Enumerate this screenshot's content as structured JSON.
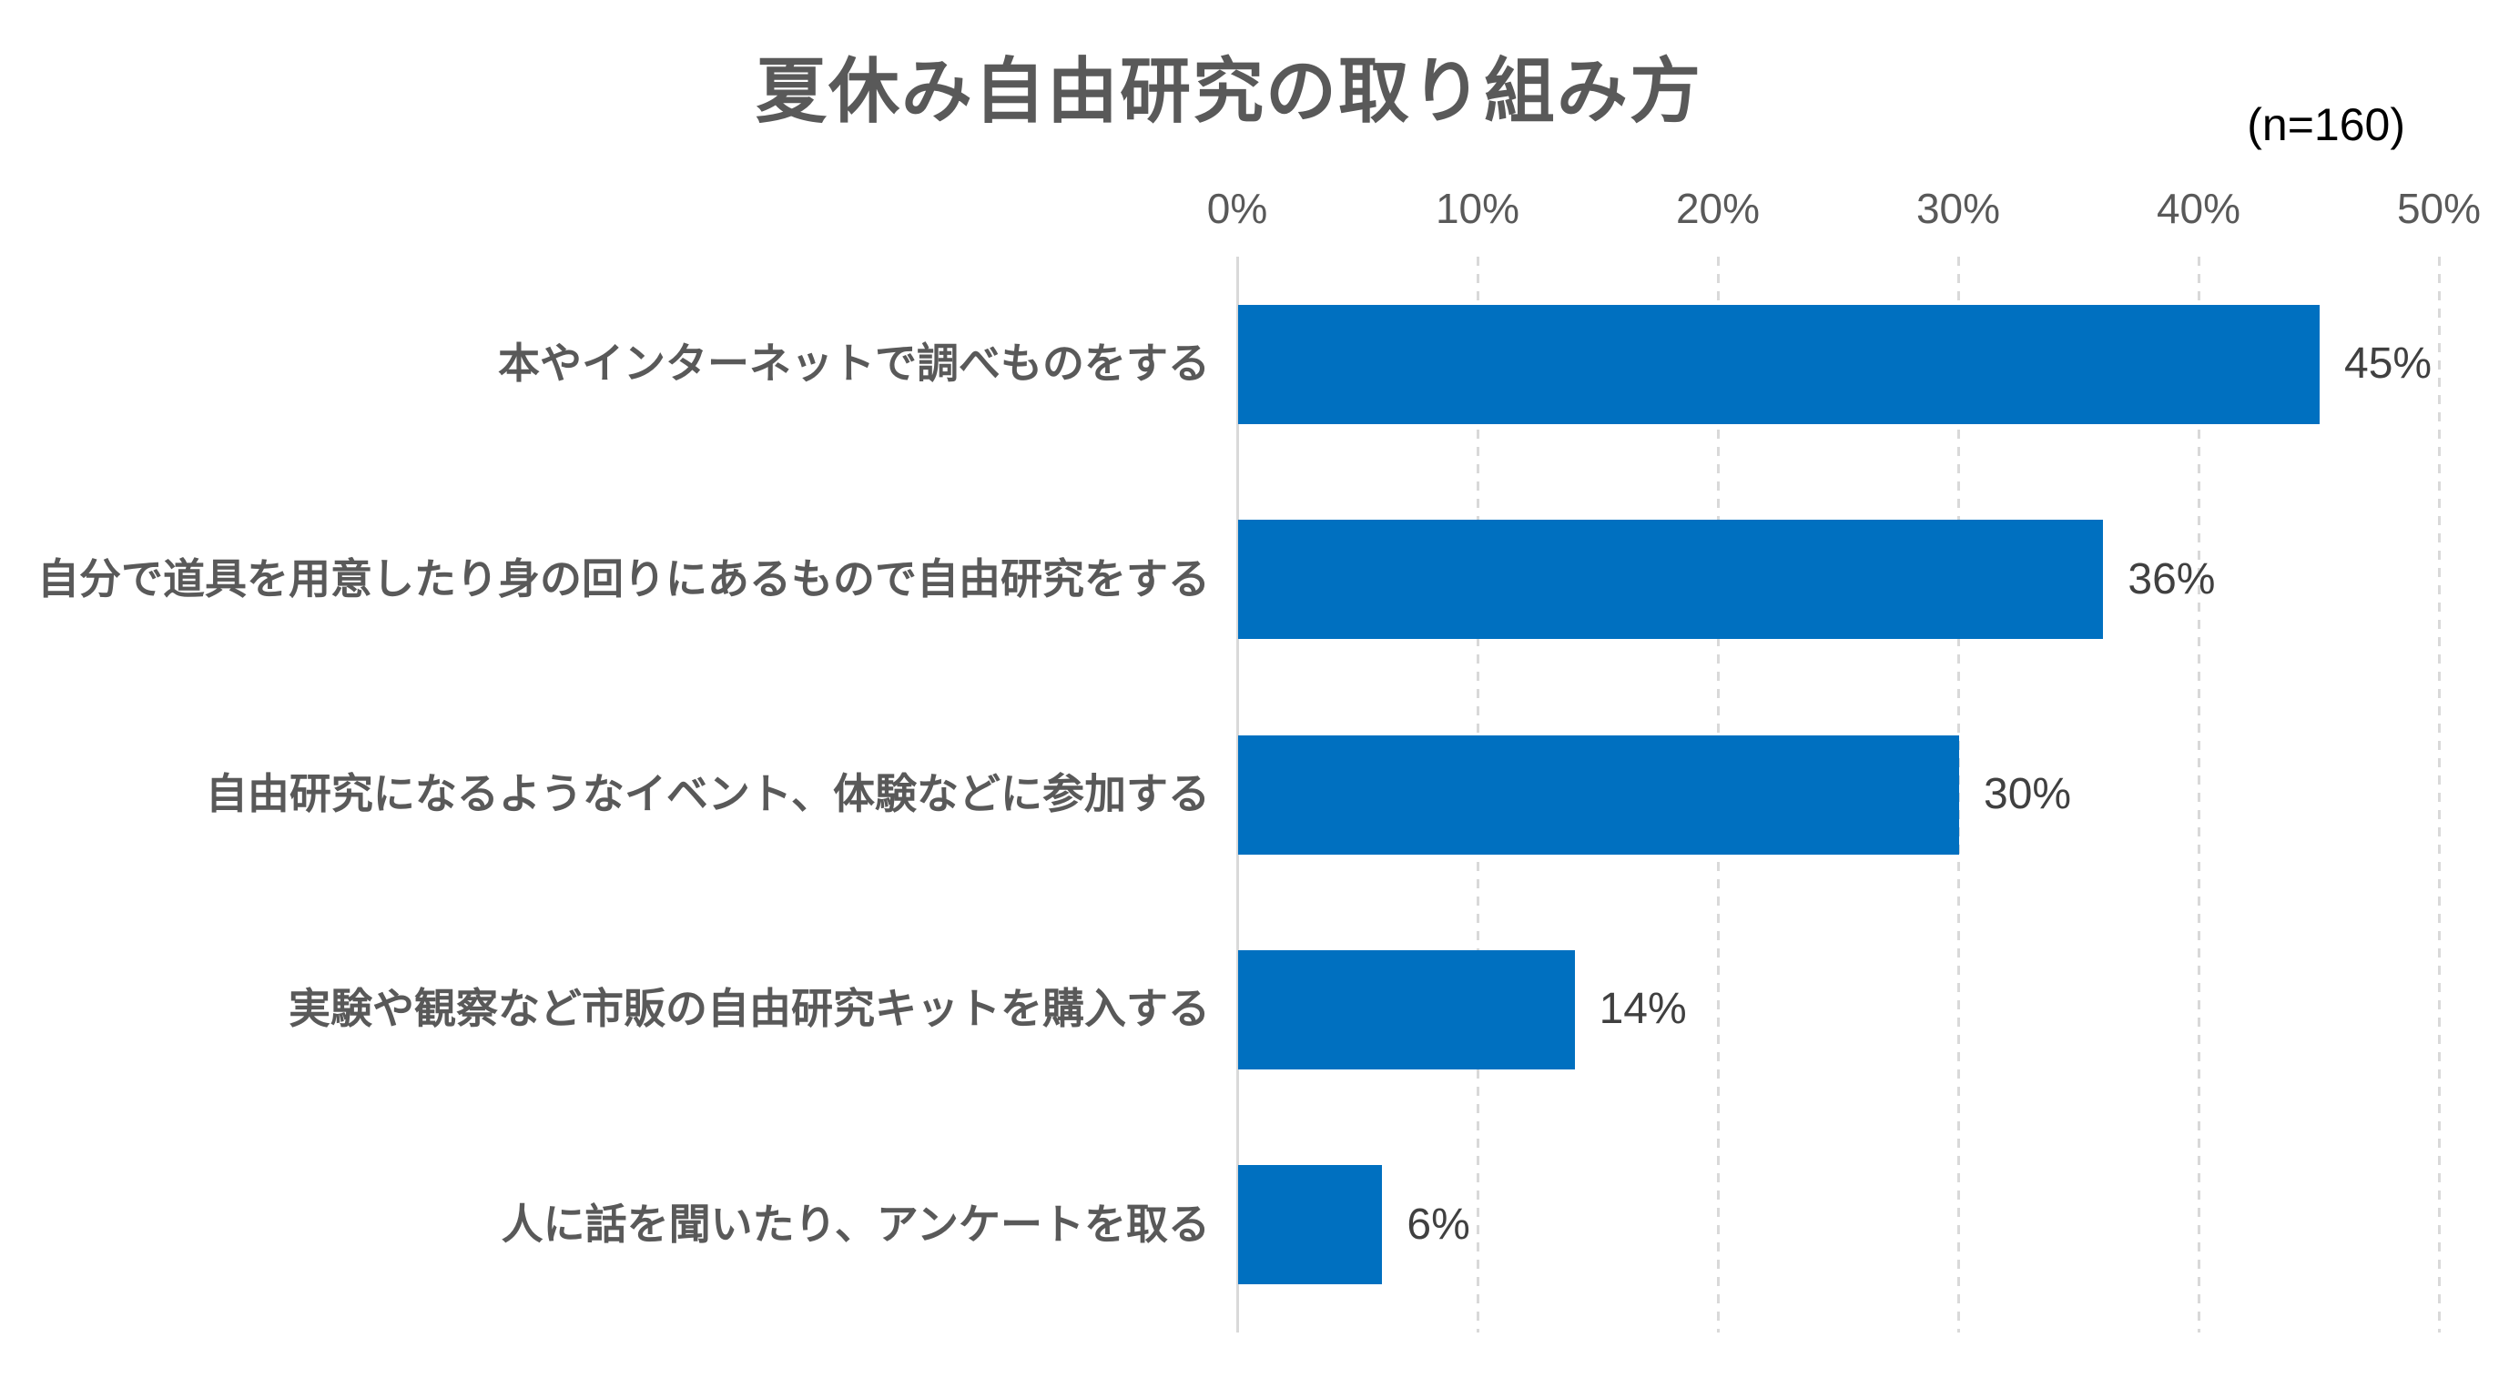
{
  "chart": {
    "title": "夏休み自由研究の取り組み方",
    "sample_size": "(n=160)"
  },
  "chart_data": {
    "type": "bar",
    "orientation": "horizontal",
    "title": "夏休み自由研究の取り組み方",
    "annotation": "(n=160)",
    "categories": [
      "本やインターネットで調べものをする",
      "自分で道具を用意したり身の回りにあるもので自由研究をする",
      "自由研究になるようなイベント、体験などに参加する",
      "実験や観察など市販の自由研究キットを購入する",
      "人に話を聞いたり、アンケートを取る"
    ],
    "values": [
      45,
      36,
      30,
      14,
      6
    ],
    "value_labels": [
      "45%",
      "36%",
      "30%",
      "14%",
      "6%"
    ],
    "xlabel": "",
    "ylabel": "",
    "xlim": [
      0,
      50
    ],
    "x_ticks": [
      "0%",
      "10%",
      "20%",
      "30%",
      "40%",
      "50%"
    ],
    "grid": "vertical-dashed",
    "legend": "none",
    "colors": {
      "bar": "#0070c0",
      "title_text": "#595959",
      "category_text": "#595959",
      "tick_text": "#595959",
      "value_text": "#404040",
      "annotation_text": "#000000",
      "axis_and_grid": "#d9d9d9",
      "background": "#ffffff"
    }
  }
}
